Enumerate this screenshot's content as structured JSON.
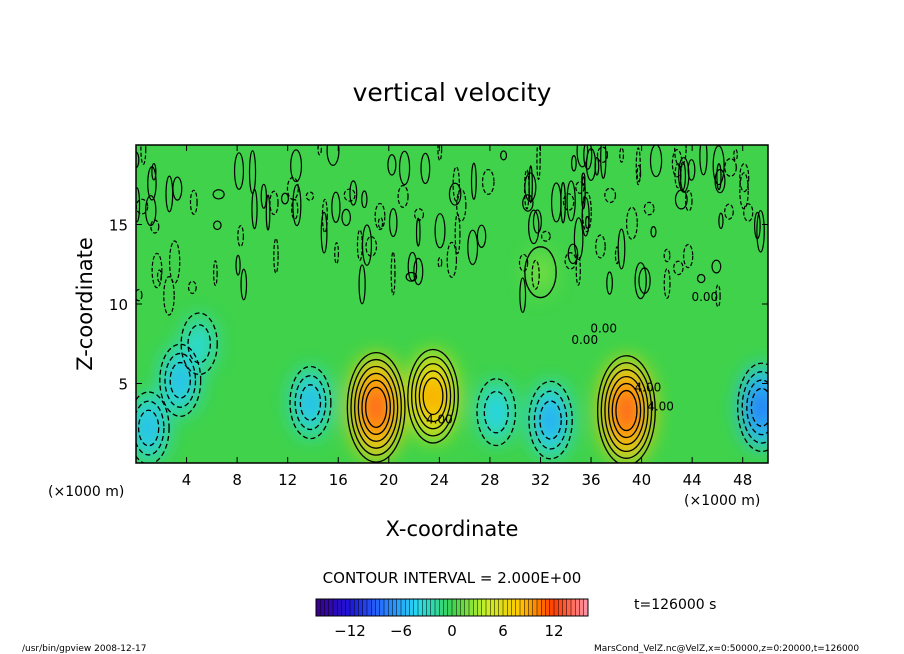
{
  "chart_data": {
    "type": "heatmap",
    "title": "vertical velocity",
    "xlabel": "X-coordinate",
    "ylabel": "Z-coordinate",
    "x_unit": "(×1000 m)",
    "y_unit": "(×1000 m)",
    "xlim": [
      0,
      50
    ],
    "ylim": [
      0,
      20
    ],
    "x_ticks": [
      4,
      8,
      12,
      16,
      20,
      24,
      28,
      32,
      36,
      40,
      44,
      48
    ],
    "y_ticks": [
      5,
      10,
      15
    ],
    "contour_interval_text": "CONTOUR INTERVAL = 2.000E+00",
    "time_label": "t=126000 s",
    "contour_labels": [
      "4.00",
      "4.00",
      "4.00",
      "0.00",
      "0.00",
      "0.00"
    ],
    "colorbar": {
      "min": -16,
      "max": 16,
      "ticks": [
        -12,
        -6,
        0,
        6,
        12
      ],
      "tick_labels": [
        "−12",
        "−6",
        "0",
        "6",
        "12"
      ]
    },
    "features": [
      {
        "x": 1,
        "z": 2.2,
        "value": -6
      },
      {
        "x": 3.5,
        "z": 5.2,
        "value": -6
      },
      {
        "x": 5,
        "z": 7.5,
        "value": -4
      },
      {
        "x": 13.8,
        "z": 3.8,
        "value": -6
      },
      {
        "x": 19,
        "z": 3.5,
        "value": 13
      },
      {
        "x": 23.5,
        "z": 4.2,
        "value": 10
      },
      {
        "x": 28.5,
        "z": 3.2,
        "value": -5
      },
      {
        "x": 32.8,
        "z": 2.7,
        "value": -7
      },
      {
        "x": 38.8,
        "z": 3.3,
        "value": 13
      },
      {
        "x": 49.5,
        "z": 3.5,
        "value": -9
      },
      {
        "x": 32,
        "z": 12,
        "value": 2
      }
    ]
  },
  "footer": {
    "left": "/usr/bin/gpview   2008-12-17",
    "right": "MarsCond_VelZ.nc@VelZ,x=0:50000,z=0:20000,t=126000"
  }
}
